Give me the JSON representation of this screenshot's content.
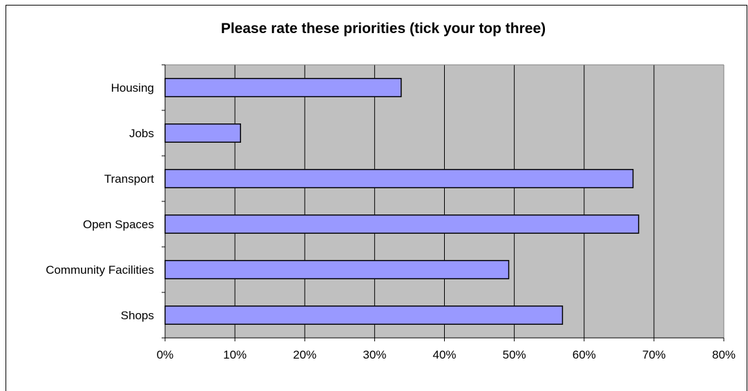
{
  "chart_data": {
    "type": "bar",
    "orientation": "horizontal",
    "title": "Please rate these priorities (tick your top three)",
    "categories": [
      "Housing",
      "Jobs",
      "Transport",
      "Open Spaces",
      "Community Facilities",
      "Shops"
    ],
    "values": [
      33.8,
      10.8,
      67.0,
      67.8,
      49.2,
      56.9
    ],
    "unit": "%",
    "xlim": [
      0,
      80
    ],
    "x_ticks": [
      "0%",
      "10%",
      "20%",
      "30%",
      "40%",
      "50%",
      "60%",
      "70%",
      "80%"
    ],
    "xlabel": "",
    "ylabel": "",
    "grid": "vertical",
    "legend": "none",
    "colors": {
      "bar_fill": "#9999FF",
      "bar_stroke": "#000000",
      "plot_background": "#C0C0C0",
      "gridline": "#000000"
    }
  }
}
